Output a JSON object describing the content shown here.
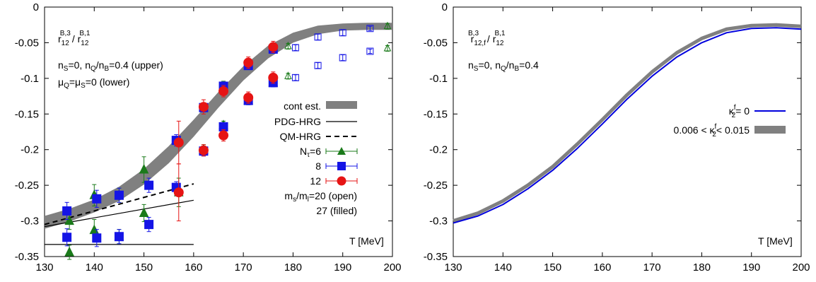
{
  "colors": {
    "band": "#808080",
    "n6": "#1a7a1a",
    "n8": "#1414e6",
    "n12": "#e61414",
    "line": "#000000",
    "kappa0": "#0000dd"
  },
  "chart_data": [
    {
      "type": "line",
      "title": "",
      "xlabel": "T [MeV]",
      "ylabel": "",
      "xlim": [
        130,
        200
      ],
      "ylim": [
        -0.35,
        0
      ],
      "xticks": [
        "130",
        "140",
        "150",
        "160",
        "170",
        "180",
        "190",
        "200"
      ],
      "yticks": [
        "0",
        "-0.05",
        "-0.1",
        "-0.15",
        "-0.2",
        "-0.25",
        "-0.3",
        "-0.35"
      ],
      "grid": false,
      "legend_position": "right",
      "annotations": {
        "ratio": {
          "a": "r",
          "a_sub": "12",
          "a_sup": "B,3",
          "sep": "/ ",
          "b": "r",
          "b_sub": "12",
          "b_sup": "B,1"
        },
        "cond1": {
          "t1": "n",
          "s1": "S",
          "t2": "=0, n",
          "s2": "Q",
          "t3": "/n",
          "s3": "B",
          "t4": "=0.4 (upper)"
        },
        "cond2": {
          "t1": "μ",
          "s1": "Q",
          "t2": "=μ",
          "s2": "S",
          "t3": "=0  (lower)"
        }
      },
      "legend": {
        "cont": "cont est.",
        "pdg": "PDG-HRG",
        "qm": "QM-HRG",
        "n6": {
          "t1": "N",
          "s1": "τ",
          "t2": "=6"
        },
        "n8": "8",
        "n12": "12",
        "ms1": {
          "t1": "m",
          "s1": "s",
          "t2": "/m",
          "s2": "l",
          "t3": "=20 (open)"
        },
        "ms2": "27 (filled)"
      },
      "band_center": {
        "x": [
          130,
          135,
          140,
          145,
          150,
          155,
          160,
          165,
          170,
          175,
          180,
          185,
          190,
          195,
          200
        ],
        "y": [
          -0.302,
          -0.292,
          -0.279,
          -0.262,
          -0.238,
          -0.207,
          -0.17,
          -0.13,
          -0.093,
          -0.063,
          -0.043,
          -0.032,
          -0.028,
          -0.027,
          -0.027
        ]
      },
      "band_halfwidth": [
        0.009,
        0.009,
        0.009,
        0.01,
        0.011,
        0.012,
        0.012,
        0.011,
        0.01,
        0.009,
        0.007,
        0.006,
        0.005,
        0.005,
        0.005
      ],
      "pdg_hrg": {
        "upper": {
          "x": [
            130,
            160
          ],
          "y": [
            -0.308,
            -0.271
          ]
        },
        "lower": {
          "x": [
            130,
            160
          ],
          "y": [
            -0.333,
            -0.333
          ]
        }
      },
      "qm_hrg": {
        "x": [
          130,
          160
        ],
        "y": [
          -0.305,
          -0.248
        ]
      },
      "series": [
        {
          "name": "Nτ=6 filled",
          "marker": "triangle",
          "filled": true,
          "color": "#1a7a1a",
          "points": [
            [
              135,
              -0.3,
              0.012
            ],
            [
              140,
              -0.264,
              0.015
            ],
            [
              145,
              -0.264,
              0.01
            ],
            [
              150,
              -0.228,
              0.018
            ],
            [
              157,
              -0.26,
              0.02
            ],
            [
              166,
              -0.112,
              0.008
            ],
            [
              171,
              -0.131,
              0.006
            ],
            [
              176,
              -0.106,
              0.006
            ],
            [
              135,
              -0.344,
              0.01
            ],
            [
              140,
              -0.313,
              0.015
            ],
            [
              145,
              -0.322,
              0.01
            ],
            [
              150,
              -0.289,
              0.012
            ],
            [
              162,
              -0.2,
              0.007
            ],
            [
              166,
              -0.166,
              0.006
            ]
          ]
        },
        {
          "name": "Nτ=6 open",
          "marker": "triangle",
          "filled": false,
          "color": "#1a7a1a",
          "points": [
            [
              179,
              -0.055,
              0.004
            ],
            [
              199,
              -0.027,
              0.004
            ],
            [
              179,
              -0.097,
              0.004
            ],
            [
              199,
              -0.058,
              0.004
            ]
          ]
        },
        {
          "name": "8 filled",
          "marker": "square",
          "filled": true,
          "color": "#1414e6",
          "points": [
            [
              134.5,
              -0.286,
              0.012
            ],
            [
              140.5,
              -0.269,
              0.012
            ],
            [
              145,
              -0.264,
              0.01
            ],
            [
              151,
              -0.25,
              0.01
            ],
            [
              156.5,
              -0.253,
              0.008
            ],
            [
              156.5,
              -0.187,
              0.008
            ],
            [
              162,
              -0.141,
              0.006
            ],
            [
              166,
              -0.111,
              0.006
            ],
            [
              171,
              -0.082,
              0.005
            ],
            [
              176,
              -0.059,
              0.005
            ],
            [
              134.5,
              -0.323,
              0.012
            ],
            [
              140.5,
              -0.324,
              0.012
            ],
            [
              145,
              -0.322,
              0.01
            ],
            [
              151,
              -0.305,
              0.01
            ],
            [
              162,
              -0.202,
              0.007
            ],
            [
              166,
              -0.168,
              0.006
            ],
            [
              171,
              -0.131,
              0.006
            ],
            [
              176,
              -0.106,
              0.006
            ]
          ]
        },
        {
          "name": "8 open",
          "marker": "square",
          "filled": false,
          "color": "#1414e6",
          "points": [
            [
              180.5,
              -0.057,
              0.004
            ],
            [
              185,
              -0.042,
              0.004
            ],
            [
              190,
              -0.036,
              0.004
            ],
            [
              195.5,
              -0.03,
              0.003
            ],
            [
              180.5,
              -0.099,
              0.004
            ],
            [
              185,
              -0.082,
              0.004
            ],
            [
              190,
              -0.071,
              0.004
            ],
            [
              195.5,
              -0.062,
              0.003
            ]
          ]
        },
        {
          "name": "12 filled",
          "marker": "circle",
          "filled": true,
          "color": "#e61414",
          "points": [
            [
              157,
              -0.19,
              0.03
            ],
            [
              162,
              -0.14,
              0.01
            ],
            [
              166,
              -0.118,
              0.008
            ],
            [
              171,
              -0.078,
              0.008
            ],
            [
              176,
              -0.056,
              0.008
            ],
            [
              157,
              -0.26,
              0.04
            ],
            [
              162,
              -0.201,
              0.008
            ],
            [
              166,
              -0.18,
              0.008
            ],
            [
              171,
              -0.127,
              0.008
            ],
            [
              176,
              -0.099,
              0.008
            ]
          ]
        }
      ]
    },
    {
      "type": "line",
      "title": "",
      "xlabel": "T [MeV]",
      "ylabel": "",
      "xlim": [
        130,
        200
      ],
      "ylim": [
        -0.35,
        0
      ],
      "xticks": [
        "130",
        "140",
        "150",
        "160",
        "170",
        "180",
        "190",
        "200"
      ],
      "yticks": [
        "0",
        "-0.05",
        "-0.1",
        "-0.15",
        "-0.2",
        "-0.25",
        "-0.3",
        "-0.35"
      ],
      "grid": false,
      "legend_position": "right",
      "annotations": {
        "ratio": {
          "a": "r",
          "a_sub": "12,f",
          "a_sup": "B,3",
          "sep": " / ",
          "b": "r",
          "b_sub": "12",
          "b_sup": "B,1"
        },
        "cond1": {
          "t1": "n",
          "s1": "S",
          "t2": "=0, n",
          "s2": "Q",
          "t3": "/n",
          "s3": "B",
          "t4": "=0.4"
        }
      },
      "legend": {
        "kappa0": {
          "t1": "κ",
          "sup": "f",
          "sub": "2",
          "t2": "= 0"
        },
        "kappa_range": {
          "t1": "0.006 < κ",
          "sup": "f",
          "sub": "2",
          "t2": "< 0.015"
        }
      },
      "series": [
        {
          "name": "κ2f = 0",
          "color": "#0000dd",
          "x": [
            130,
            135,
            140,
            145,
            150,
            155,
            160,
            165,
            170,
            175,
            180,
            185,
            190,
            195,
            200
          ],
          "y": [
            -0.303,
            -0.293,
            -0.277,
            -0.255,
            -0.229,
            -0.198,
            -0.164,
            -0.129,
            -0.097,
            -0.07,
            -0.05,
            -0.036,
            -0.03,
            -0.029,
            -0.031
          ]
        },
        {
          "name": "0.006 < κ2f < 0.015",
          "color": "#808080",
          "x": [
            130,
            135,
            140,
            145,
            150,
            155,
            160,
            165,
            170,
            175,
            180,
            185,
            190,
            195,
            200
          ],
          "y": [
            -0.3,
            -0.289,
            -0.272,
            -0.25,
            -0.224,
            -0.192,
            -0.158,
            -0.123,
            -0.091,
            -0.064,
            -0.044,
            -0.031,
            -0.026,
            -0.025,
            -0.027
          ]
        }
      ]
    }
  ]
}
